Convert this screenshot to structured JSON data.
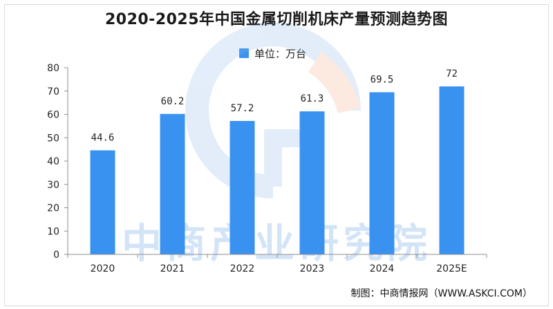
{
  "chart_data": {
    "type": "bar",
    "title": "2020-2025年中国金属切削机床产量预测趋势图",
    "legend": "单位：万台",
    "categories": [
      "2020",
      "2021",
      "2022",
      "2023",
      "2024",
      "2025E"
    ],
    "values": [
      44.6,
      60.2,
      57.2,
      61.3,
      69.5,
      72
    ],
    "value_labels": [
      "44.6",
      "60.2",
      "57.2",
      "61.3",
      "69.5",
      "72"
    ],
    "y_ticks": [
      "0",
      "10",
      "20",
      "30",
      "40",
      "50",
      "60",
      "70",
      "80"
    ],
    "ylim": [
      0,
      80
    ],
    "grid": false,
    "legend_position": "top-center",
    "bar_color": "#3a92f0"
  },
  "watermark": {
    "text": "中商产业研究院"
  },
  "footer": {
    "credit": "制图：中商情报网（WWW.ASKCI.COM）"
  }
}
